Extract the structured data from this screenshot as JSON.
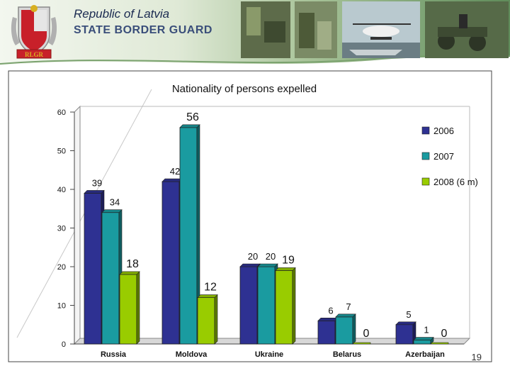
{
  "header": {
    "line1": "Republic of Latvia",
    "line2": "STATE BORDER GUARD",
    "crest_caption": "RLGR"
  },
  "page_number": "19",
  "colors": {
    "series_2006": "#2e3192",
    "series_2007": "#1a9ba0",
    "series_2008": "#99cc00"
  },
  "chart_data": {
    "type": "bar",
    "title": "Nationality of persons expelled",
    "categories": [
      "Russia",
      "Moldova",
      "Ukraine",
      "Belarus",
      "Azerbaijan"
    ],
    "series": [
      {
        "name": "2006",
        "values": [
          39,
          42,
          20,
          6,
          5
        ]
      },
      {
        "name": "2007",
        "values": [
          34,
          56,
          20,
          7,
          1
        ]
      },
      {
        "name": "2008 (6 m)",
        "values": [
          18,
          12,
          19,
          0,
          0
        ]
      }
    ],
    "ylim": [
      0,
      60
    ],
    "yticks": [
      0,
      10,
      20,
      30,
      40,
      50,
      60
    ],
    "xlabel": "",
    "ylabel": "",
    "grid": false,
    "legend": "right"
  }
}
